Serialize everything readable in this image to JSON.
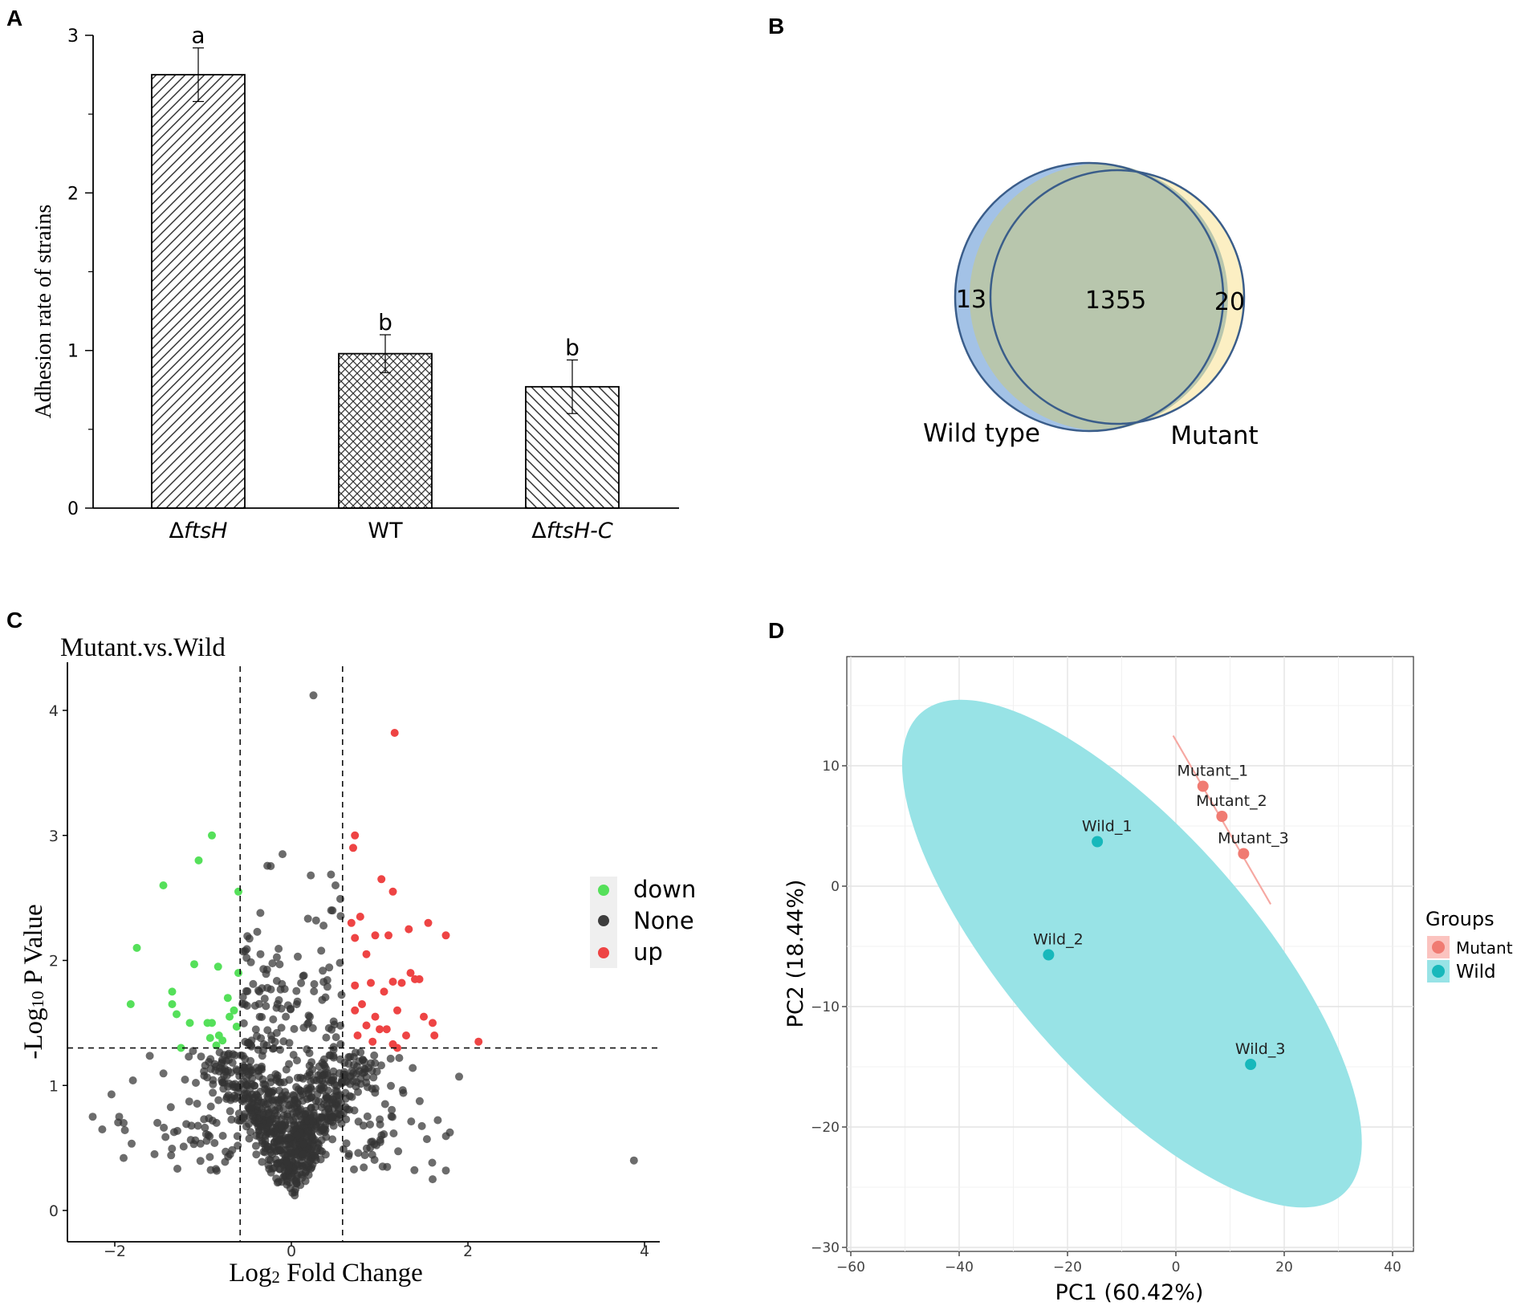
{
  "panels": {
    "a": "A",
    "b": "B",
    "c": "C",
    "d": "D"
  },
  "chart_data": [
    {
      "id": "A",
      "type": "bar",
      "title": "",
      "xlabel": "",
      "ylabel": "Adhesion rate of strains",
      "ylim": [
        0,
        3
      ],
      "yticks": [
        0,
        1,
        2,
        3
      ],
      "categories": [
        "ΔftsH",
        "WT",
        "ΔftsH-C"
      ],
      "category_labels": [
        {
          "prefix": "Δ",
          "name": "ftsH",
          "suffix": ""
        },
        {
          "prefix": "",
          "name": "WT",
          "suffix": ""
        },
        {
          "prefix": "Δ",
          "name": "ftsH",
          "suffix": "-C"
        }
      ],
      "values": [
        2.75,
        0.98,
        0.77
      ],
      "errors": [
        0.17,
        0.12,
        0.17
      ],
      "letters": [
        "a",
        "b",
        "b"
      ],
      "patterns": [
        "diag-right",
        "crosshatch",
        "diag-left"
      ]
    },
    {
      "id": "B",
      "type": "venn",
      "sets": [
        "Wild type",
        "Mutant"
      ],
      "only_first": "13",
      "both": "1355",
      "only_second": "20",
      "colors": {
        "wild": "#a3c2e6",
        "mutant": "#fcefc3",
        "overlap": "#b8c6ad",
        "outline": "#3a5d8a"
      }
    },
    {
      "id": "C",
      "type": "scatter",
      "title": "Mutant.vs.Wild",
      "xlabel_pre": "Log",
      "xlabel_sub": "2",
      "xlabel_post": " Fold Change",
      "ylabel_pre": "-Log",
      "ylabel_sub": "10",
      "ylabel_post": " P Value",
      "xlim": [
        -2.5,
        4.2
      ],
      "ylim": [
        -0.2,
        4.35
      ],
      "xticks": [
        -2,
        0,
        2,
        4
      ],
      "yticks": [
        0,
        1,
        2,
        3,
        4
      ],
      "thresholds": {
        "x": [
          -0.58,
          0.58
        ],
        "y": 1.3
      },
      "legend": [
        {
          "label": "down",
          "color": "#55e05a"
        },
        {
          "label": "None",
          "color": "#3d3d3d"
        },
        {
          "label": "up",
          "color": "#ee4444"
        }
      ],
      "down": [
        [
          -0.9,
          3.0
        ],
        [
          -1.05,
          2.8
        ],
        [
          -1.45,
          2.6
        ],
        [
          -0.6,
          2.55
        ],
        [
          -1.75,
          2.1
        ],
        [
          -1.1,
          1.97
        ],
        [
          -0.83,
          1.95
        ],
        [
          -0.6,
          1.9
        ],
        [
          -1.35,
          1.75
        ],
        [
          -0.72,
          1.7
        ],
        [
          -1.82,
          1.65
        ],
        [
          -1.35,
          1.65
        ],
        [
          -0.65,
          1.6
        ],
        [
          -1.3,
          1.57
        ],
        [
          -0.7,
          1.55
        ],
        [
          -1.15,
          1.5
        ],
        [
          -0.95,
          1.5
        ],
        [
          -0.9,
          1.5
        ],
        [
          -0.62,
          1.47
        ],
        [
          -0.82,
          1.4
        ],
        [
          -0.92,
          1.38
        ],
        [
          -0.78,
          1.36
        ],
        [
          -0.85,
          1.32
        ],
        [
          -1.25,
          1.3
        ]
      ],
      "up": [
        [
          1.17,
          3.82
        ],
        [
          0.72,
          3.0
        ],
        [
          0.7,
          2.9
        ],
        [
          1.02,
          2.65
        ],
        [
          1.15,
          2.55
        ],
        [
          0.78,
          2.35
        ],
        [
          0.68,
          2.3
        ],
        [
          1.55,
          2.3
        ],
        [
          1.33,
          2.25
        ],
        [
          1.75,
          2.2
        ],
        [
          0.72,
          2.18
        ],
        [
          0.95,
          2.2
        ],
        [
          1.1,
          2.2
        ],
        [
          0.85,
          2.05
        ],
        [
          1.35,
          1.9
        ],
        [
          1.4,
          1.85
        ],
        [
          1.15,
          1.83
        ],
        [
          1.25,
          1.82
        ],
        [
          0.9,
          1.82
        ],
        [
          0.72,
          1.8
        ],
        [
          1.45,
          1.85
        ],
        [
          1.05,
          1.75
        ],
        [
          0.8,
          1.65
        ],
        [
          0.72,
          1.6
        ],
        [
          1.2,
          1.6
        ],
        [
          0.95,
          1.55
        ],
        [
          1.5,
          1.55
        ],
        [
          1.6,
          1.5
        ],
        [
          0.85,
          1.48
        ],
        [
          1.08,
          1.45
        ],
        [
          1.0,
          1.45
        ],
        [
          0.75,
          1.4
        ],
        [
          1.3,
          1.4
        ],
        [
          0.92,
          1.35
        ],
        [
          1.15,
          1.33
        ],
        [
          1.2,
          1.3
        ],
        [
          2.12,
          1.35
        ],
        [
          1.62,
          1.4
        ]
      ],
      "none_count": 1000,
      "none_extra": [
        [
          0.25,
          4.12
        ],
        [
          -0.1,
          2.85
        ],
        [
          0.22,
          2.68
        ],
        [
          -0.35,
          2.05
        ],
        [
          -2.25,
          0.75
        ],
        [
          -1.9,
          0.7
        ],
        [
          -1.9,
          0.42
        ],
        [
          3.88,
          0.4
        ],
        [
          1.75,
          0.32
        ],
        [
          1.6,
          0.25
        ],
        [
          1.9,
          1.07
        ],
        [
          -1.55,
          0.45
        ],
        [
          -1.95,
          0.75
        ],
        [
          0.5,
          2.6
        ],
        [
          0.28,
          2.32
        ],
        [
          0.55,
          1.98
        ]
      ]
    },
    {
      "id": "D",
      "type": "scatter",
      "title": "",
      "xlabel": "PC1 (60.42%)",
      "ylabel": "PC2 (18.44%)",
      "xlim": [
        -60,
        44
      ],
      "ylim": [
        -30.5,
        17
      ],
      "xticks": [
        -60,
        -40,
        -20,
        0,
        20,
        40
      ],
      "yticks": [
        -30,
        -20,
        -10,
        0,
        10
      ],
      "legend_title": "Groups",
      "series": [
        {
          "name": "Mutant",
          "color": "#f07b72",
          "points": [
            {
              "label": "Mutant_1",
              "x": 5.0,
              "y": 8.3
            },
            {
              "label": "Mutant_2",
              "x": 8.5,
              "y": 5.8
            },
            {
              "label": "Mutant_3",
              "x": 12.5,
              "y": 2.7
            }
          ],
          "ellipse_axis": [
            [
              -0.5,
              12.5
            ],
            [
              17.5,
              -1.5
            ]
          ]
        },
        {
          "name": "Wild",
          "color": "#17b8bb",
          "points": [
            {
              "label": "Wild_1",
              "x": -14.5,
              "y": 3.7
            },
            {
              "label": "Wild_2",
              "x": -23.5,
              "y": -5.7
            },
            {
              "label": "Wild_3",
              "x": 13.8,
              "y": -14.8
            }
          ],
          "ellipse_center": [
            -8.1,
            -5.6
          ],
          "ellipse_major_endpoints": [
            [
              -47.0,
              14.4
            ],
            [
              30.8,
              -25.6
            ]
          ],
          "ellipse_minor_halfwidth": 22.5,
          "ellipse_fill": "#98e3e6"
        }
      ]
    }
  ]
}
